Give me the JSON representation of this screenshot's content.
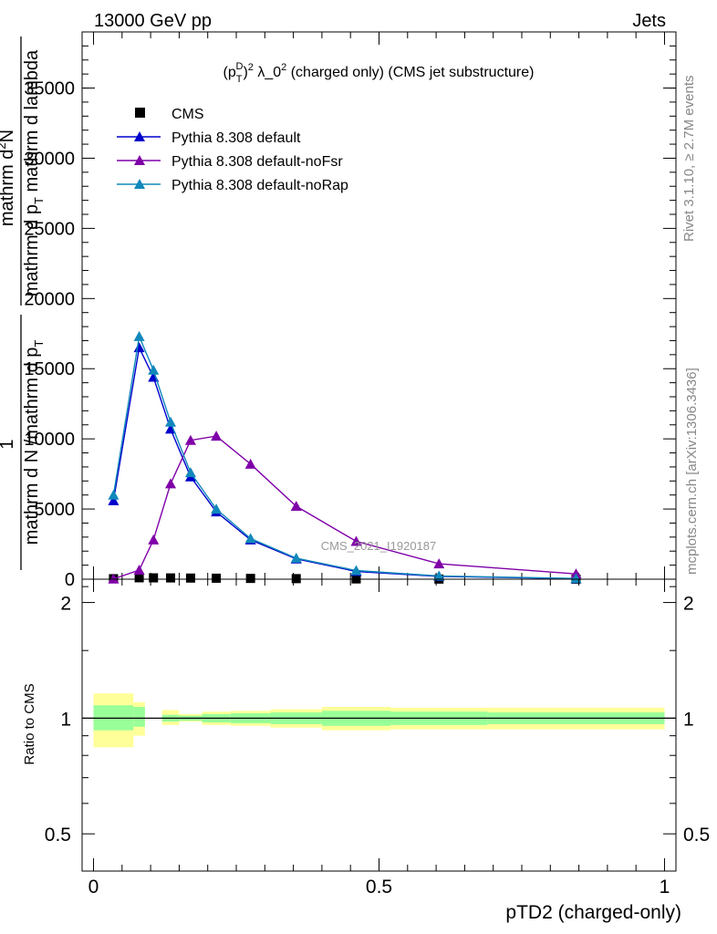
{
  "header": {
    "left": "13000 GeV pp",
    "right": "Jets"
  },
  "side_text": {
    "rivet": "Rivet 3.1.10, ≥ 2.7M events",
    "mcplots": "mcplots.cern.ch [arXiv:1306.3436]"
  },
  "watermark": "CMS_2021_I1920187",
  "chart_data": [
    {
      "type": "scatter",
      "title": {
        "prefix": "(p",
        "sub": "T",
        "sup": "D",
        "exp": "2",
        "middle": " λ_0",
        "middle_exp": "2",
        "suffix": " (charged only) (CMS jet substructure)"
      },
      "ylabel": {
        "numerator_1": "1",
        "denominator_1": "mathrm d N /mathrm d p",
        "denominator_1_sub": "T",
        "numerator_2": "mathrm d",
        "numerator_2_sup": "2",
        "numerator_2_tail": "N",
        "denominator_2": "mathrm d p",
        "denominator_2_sub": "T",
        "denominator_2_tail": " mathrm d lambda"
      },
      "xlim": [
        -0.02,
        1.02
      ],
      "ylim": [
        0,
        39000
      ],
      "yticks": [
        0,
        5000,
        10000,
        15000,
        20000,
        25000,
        30000,
        35000
      ],
      "ytick_labels": [
        "0",
        "5000",
        "10000",
        "15000",
        "20000",
        "25000",
        "30000",
        "35000"
      ],
      "x": [
        0.035,
        0.08,
        0.105,
        0.135,
        0.17,
        0.215,
        0.275,
        0.355,
        0.46,
        0.605,
        0.845
      ],
      "series": [
        {
          "name": "CMS",
          "color": "#000000",
          "marker": "square",
          "values": [
            35,
            100,
            95,
            90,
            80,
            70,
            55,
            40,
            20,
            8,
            2
          ]
        },
        {
          "name": "Pythia 8.308 default",
          "color": "#0000cc",
          "marker": "triangle",
          "values": [
            5600,
            16500,
            14400,
            10700,
            7300,
            4800,
            2800,
            1450,
            550,
            200,
            40
          ]
        },
        {
          "name": "Pythia 8.308 default-noFsr",
          "color": "#7f00a8",
          "marker": "triangle",
          "values": [
            20,
            650,
            2800,
            6800,
            9900,
            10200,
            8200,
            5200,
            2700,
            1100,
            380
          ]
        },
        {
          "name": "Pythia 8.308 default-noRap",
          "color": "#1188bb",
          "marker": "triangle",
          "values": [
            6000,
            17300,
            14900,
            11200,
            7600,
            5000,
            2900,
            1500,
            620,
            230,
            50
          ]
        }
      ],
      "legend_position": "top-left"
    },
    {
      "type": "area",
      "ylabel": "Ratio to CMS",
      "xlabel": "pTD2 (charged-only)",
      "xlim": [
        -0.02,
        1.02
      ],
      "ylim": [
        0.4,
        2.3
      ],
      "log_scale_y": true,
      "yticks": [
        0.5,
        1,
        2
      ],
      "ytick_labels": [
        "0.5",
        "1",
        "2"
      ],
      "xticks": [
        0,
        0.5,
        1
      ],
      "xtick_labels": [
        "0",
        "0.5",
        "1"
      ],
      "bin_edges": [
        0,
        0.07,
        0.09,
        0.12,
        0.15,
        0.19,
        0.24,
        0.31,
        0.4,
        0.52,
        0.69,
        1.0
      ],
      "band_inner": [
        [
          0.93,
          1.08
        ],
        [
          0.95,
          1.07
        ],
        [
          null,
          null
        ],
        [
          0.98,
          1.02
        ],
        [
          0.985,
          1.015
        ],
        [
          0.975,
          1.025
        ],
        [
          0.97,
          1.03
        ],
        [
          0.965,
          1.035
        ],
        [
          0.955,
          1.045
        ],
        [
          0.96,
          1.04
        ],
        [
          0.965,
          1.035
        ]
      ],
      "band_outer": [
        [
          0.84,
          1.16
        ],
        [
          0.9,
          1.1
        ],
        [
          null,
          null
        ],
        [
          0.96,
          1.05
        ],
        [
          0.98,
          1.025
        ],
        [
          0.96,
          1.04
        ],
        [
          0.955,
          1.045
        ],
        [
          0.945,
          1.055
        ],
        [
          0.93,
          1.07
        ],
        [
          0.935,
          1.065
        ],
        [
          0.935,
          1.065
        ]
      ],
      "band_colors": {
        "inner": "#99ff99",
        "outer": "#ffff99"
      },
      "reference_line": 1
    }
  ]
}
